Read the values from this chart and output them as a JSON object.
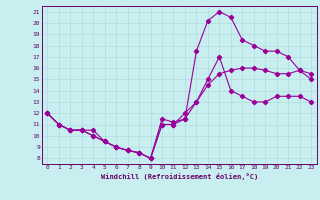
{
  "xlabel": "Windchill (Refroidissement éolien,°C)",
  "bg_color": "#c8eef0",
  "line_color": "#990099",
  "grid_color": "#b0dde0",
  "xlim": [
    -0.5,
    23.5
  ],
  "ylim": [
    7.5,
    21.5
  ],
  "xticks": [
    0,
    1,
    2,
    3,
    4,
    5,
    6,
    7,
    8,
    9,
    10,
    11,
    12,
    13,
    14,
    15,
    16,
    17,
    18,
    19,
    20,
    21,
    22,
    23
  ],
  "yticks": [
    8,
    9,
    10,
    11,
    12,
    13,
    14,
    15,
    16,
    17,
    18,
    19,
    20,
    21
  ],
  "line1_x": [
    0,
    1,
    2,
    3,
    4,
    5,
    6,
    7,
    8,
    9,
    10,
    11,
    12,
    13,
    14,
    15,
    16,
    17,
    18,
    19,
    20,
    21,
    22,
    23
  ],
  "line1_y": [
    12.0,
    11.0,
    10.5,
    10.5,
    10.5,
    9.5,
    9.0,
    8.7,
    8.5,
    8.0,
    11.5,
    11.2,
    11.5,
    17.5,
    20.2,
    21.0,
    20.5,
    18.5,
    18.0,
    17.5,
    17.5,
    17.0,
    15.8,
    15.0
  ],
  "line2_x": [
    0,
    1,
    2,
    3,
    4,
    5,
    6,
    7,
    8,
    9,
    10,
    11,
    12,
    13,
    14,
    15,
    16,
    17,
    18,
    19,
    20,
    21,
    22,
    23
  ],
  "line2_y": [
    12.0,
    11.0,
    10.5,
    10.5,
    10.0,
    9.5,
    9.0,
    8.7,
    8.5,
    8.0,
    11.0,
    11.0,
    12.0,
    13.0,
    14.5,
    15.5,
    15.8,
    16.0,
    16.0,
    15.8,
    15.5,
    15.5,
    15.8,
    15.5
  ],
  "line3_x": [
    0,
    1,
    2,
    3,
    4,
    5,
    6,
    7,
    8,
    9,
    10,
    11,
    12,
    13,
    14,
    15,
    16,
    17,
    18,
    19,
    20,
    21,
    22,
    23
  ],
  "line3_y": [
    12.0,
    11.0,
    10.5,
    10.5,
    10.0,
    9.5,
    9.0,
    8.7,
    8.5,
    8.0,
    11.0,
    11.0,
    11.5,
    13.0,
    15.0,
    17.0,
    14.0,
    13.5,
    13.0,
    13.0,
    13.5,
    13.5,
    13.5,
    13.0
  ]
}
